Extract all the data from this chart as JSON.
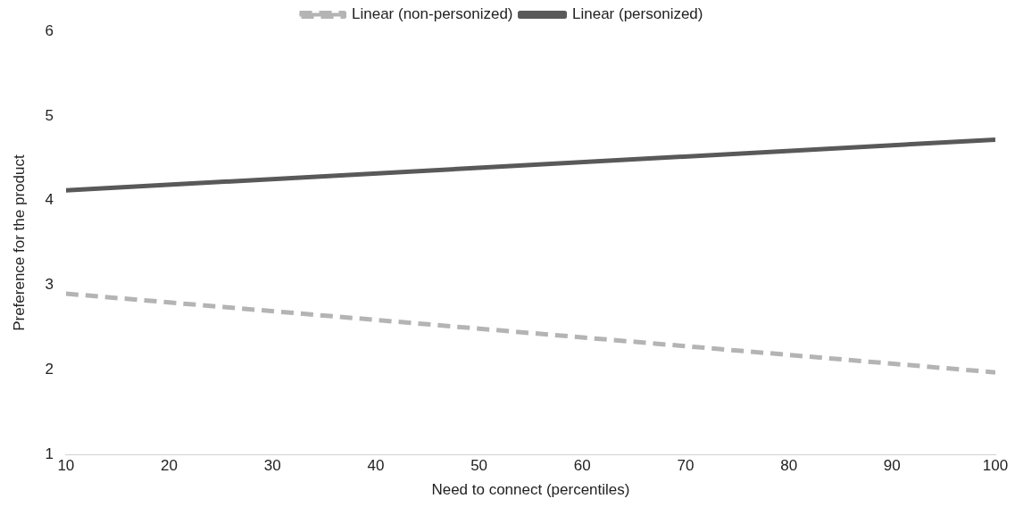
{
  "chart_data": {
    "type": "line",
    "xlabel": "Need to connect (percentiles)",
    "ylabel": "Preference for the product",
    "x": [
      10,
      100
    ],
    "series": [
      {
        "name": "Linear (non-personized)",
        "color": "#b4b4b4",
        "values": [
          2.9,
          1.97
        ],
        "line_style": "dashed"
      },
      {
        "name": "Linear (personized)",
        "color": "#595959",
        "values": [
          4.12,
          4.72
        ],
        "line_style": "solid"
      }
    ],
    "xlim": [
      10,
      100
    ],
    "xticks": [
      10,
      20,
      30,
      40,
      50,
      60,
      70,
      80,
      90,
      100
    ],
    "ylim": [
      1,
      6
    ],
    "yticks": [
      1,
      2,
      3,
      4,
      5,
      6
    ],
    "grid": false,
    "legend": "top",
    "marker": "none"
  }
}
